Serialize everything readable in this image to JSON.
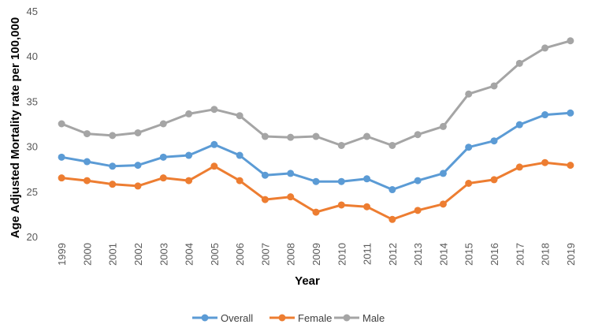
{
  "chart_data": {
    "type": "line",
    "title": "",
    "xlabel": "Year",
    "ylabel": "Age Adjusted Mortality rate per 100,000",
    "ylim": [
      20,
      45
    ],
    "yticks": [
      20,
      25,
      30,
      35,
      40,
      45
    ],
    "grid": false,
    "legend_position": "bottom-center",
    "categories": [
      "1999",
      "2000",
      "2001",
      "2002",
      "2003",
      "2004",
      "2005",
      "2006",
      "2007",
      "2008",
      "2009",
      "2010",
      "2011",
      "2012",
      "2013",
      "2014",
      "2015",
      "2016",
      "2017",
      "2018",
      "2019"
    ],
    "series": [
      {
        "name": "Overall",
        "color": "#5B9BD5",
        "values": [
          28.8,
          28.3,
          27.8,
          27.9,
          28.8,
          29.0,
          30.2,
          29.0,
          26.8,
          27.0,
          26.1,
          26.1,
          26.4,
          25.2,
          26.2,
          27.0,
          29.9,
          30.6,
          32.4,
          33.5,
          33.7
        ]
      },
      {
        "name": "Female",
        "color": "#ED7D31",
        "values": [
          26.5,
          26.2,
          25.8,
          25.6,
          26.5,
          26.2,
          27.8,
          26.2,
          24.1,
          24.4,
          22.7,
          23.5,
          23.3,
          21.9,
          22.9,
          23.6,
          25.9,
          26.3,
          27.7,
          28.2,
          27.9
        ]
      },
      {
        "name": "Male",
        "color": "#A5A5A5",
        "values": [
          32.5,
          31.4,
          31.2,
          31.5,
          32.5,
          33.6,
          34.1,
          33.4,
          31.1,
          31.0,
          31.1,
          30.1,
          31.1,
          30.1,
          31.3,
          32.2,
          35.8,
          36.7,
          39.2,
          40.9,
          41.7
        ]
      }
    ]
  }
}
